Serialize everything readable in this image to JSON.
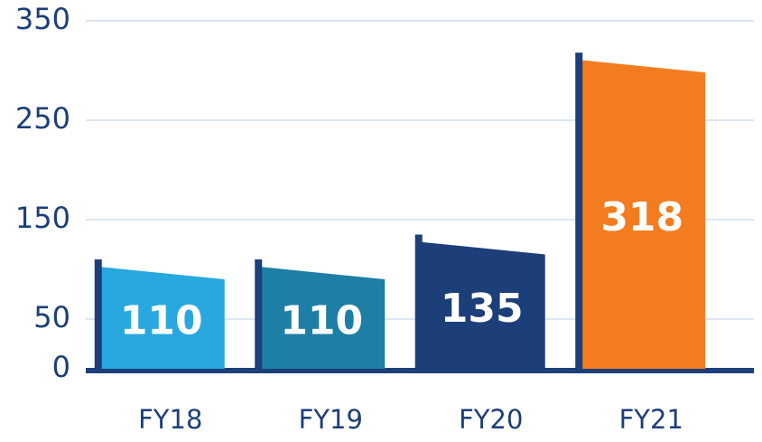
{
  "chart_data": {
    "type": "bar",
    "categories": [
      "FY18",
      "FY19",
      "FY20",
      "FY21"
    ],
    "values": [
      110,
      110,
      135,
      318
    ],
    "colors": [
      "#29a8e0",
      "#1d7ea6",
      "#1c3f7a",
      "#f47c20"
    ],
    "ylim": [
      0,
      350
    ],
    "yticks": [
      0,
      50,
      150,
      250,
      350
    ],
    "grid": true
  }
}
